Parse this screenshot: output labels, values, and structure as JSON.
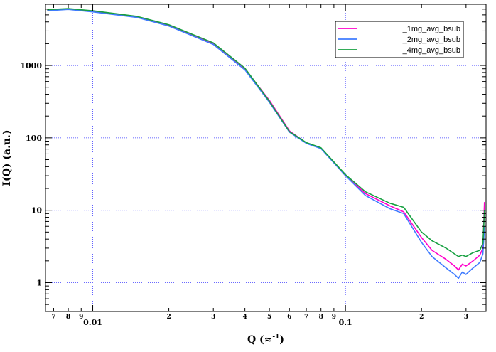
{
  "chart_data": {
    "type": "line",
    "title": "",
    "xlabel": "Q (≈",
    "xlabel_superscript": "-1",
    "xlabel_close": ")",
    "ylabel": "I(Q) (a.u.)",
    "x_scale": "log",
    "y_scale": "log",
    "xlim": [
      0.0065,
      0.36
    ],
    "ylim": [
      0.4,
      7000
    ],
    "grid": true,
    "legend_position": "top-right",
    "x_ticks": {
      "major": [
        0.01,
        0.1
      ],
      "major_labels": [
        "0.01",
        "0.1"
      ],
      "minor": [
        0.007,
        0.008,
        0.009,
        0.02,
        0.03,
        0.04,
        0.05,
        0.06,
        0.07,
        0.08,
        0.09,
        0.2,
        0.3
      ],
      "minor_labels": [
        "7",
        "8",
        "9",
        "2",
        "3",
        "4",
        "5",
        "6",
        "7",
        "8",
        "9",
        "2",
        "3"
      ]
    },
    "y_ticks": {
      "major": [
        1,
        10,
        100,
        1000
      ],
      "major_labels": [
        "1",
        "10",
        "100",
        "1000"
      ]
    },
    "series": [
      {
        "name": "_1mg_avg_bsub",
        "color": "#ff00cc",
        "x": [
          0.0066,
          0.008,
          0.01,
          0.015,
          0.02,
          0.03,
          0.04,
          0.05,
          0.06,
          0.07,
          0.08,
          0.1,
          0.12,
          0.15,
          0.17,
          0.2,
          0.22,
          0.25,
          0.27,
          0.28,
          0.29,
          0.3,
          0.32,
          0.34,
          0.35,
          0.355
        ],
        "y": [
          5800,
          6000,
          5600,
          4700,
          3600,
          2000,
          900,
          330,
          125,
          85,
          72,
          30,
          17,
          11.5,
          9.5,
          4.2,
          2.8,
          2.1,
          1.7,
          1.5,
          1.8,
          1.7,
          2.0,
          2.4,
          3.0,
          13
        ]
      },
      {
        "name": "_2mg_avg_bsub",
        "color": "#3f7bff",
        "x": [
          0.0066,
          0.008,
          0.01,
          0.015,
          0.02,
          0.03,
          0.04,
          0.05,
          0.06,
          0.07,
          0.08,
          0.1,
          0.12,
          0.15,
          0.17,
          0.2,
          0.22,
          0.25,
          0.27,
          0.28,
          0.29,
          0.3,
          0.32,
          0.34,
          0.35,
          0.355
        ],
        "y": [
          5700,
          5950,
          5500,
          4600,
          3500,
          1950,
          870,
          310,
          120,
          84,
          71,
          30,
          16,
          10.5,
          9,
          3.6,
          2.3,
          1.6,
          1.3,
          1.15,
          1.4,
          1.3,
          1.6,
          1.9,
          2.5,
          6
        ]
      },
      {
        "name": "_4mg_avg_bsub",
        "color": "#16a040",
        "x": [
          0.0066,
          0.008,
          0.01,
          0.015,
          0.02,
          0.03,
          0.04,
          0.05,
          0.06,
          0.07,
          0.08,
          0.1,
          0.12,
          0.15,
          0.17,
          0.2,
          0.22,
          0.25,
          0.27,
          0.28,
          0.29,
          0.3,
          0.32,
          0.34,
          0.35,
          0.355
        ],
        "y": [
          5900,
          6100,
          5700,
          4750,
          3650,
          2050,
          920,
          320,
          122,
          86,
          73,
          31,
          18,
          12.5,
          11,
          5.0,
          3.8,
          3.0,
          2.5,
          2.3,
          2.4,
          2.3,
          2.6,
          2.8,
          3.5,
          10
        ]
      }
    ]
  }
}
